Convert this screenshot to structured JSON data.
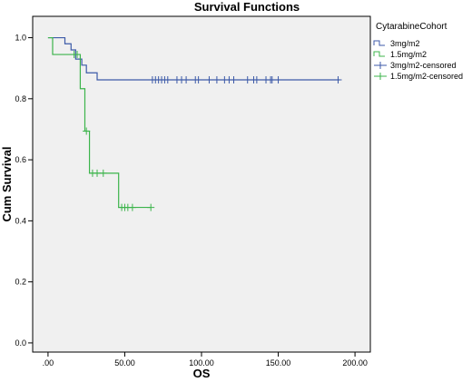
{
  "chart_data": {
    "type": "line",
    "title": "Survival Functions",
    "xlabel": "OS",
    "ylabel": "Cum Survival",
    "xlim": [
      -10,
      210
    ],
    "ylim": [
      -0.03,
      1.07
    ],
    "x_ticks": [
      0,
      50,
      100,
      150,
      200
    ],
    "x_tick_labels": [
      ".00",
      "50.00",
      "100.00",
      "150.00",
      "200.00"
    ],
    "y_ticks": [
      0.0,
      0.2,
      0.4,
      0.6,
      0.8,
      1.0
    ],
    "y_tick_labels": [
      "0.0",
      "0.2",
      "0.4",
      "0.6",
      "0.8",
      "1.0"
    ],
    "grid": false,
    "background": "#f0f0f0",
    "legend": {
      "title": "CytarabineCohort",
      "placement": "right",
      "entries": [
        "3mg/m2",
        "1.5mg/m2",
        "3mg/m2-censored",
        "1.5mg/m2-censored"
      ]
    },
    "series": [
      {
        "name": "3mg/m2",
        "color": "#3c5aa8",
        "step_x": [
          0,
          11,
          15,
          18,
          22,
          25,
          32,
          190
        ],
        "step_y": [
          1.0,
          0.98,
          0.96,
          0.93,
          0.91,
          0.885,
          0.862,
          0.862
        ],
        "censored_x": [
          68,
          70,
          72,
          74,
          76,
          78,
          84,
          87,
          90,
          96,
          98,
          105,
          110,
          115,
          118,
          121,
          130,
          134,
          136,
          142,
          145,
          146,
          150,
          189
        ],
        "censored_y": 0.862
      },
      {
        "name": "1.5mg/m2",
        "color": "#3cb44b",
        "step_x": [
          0,
          3,
          21,
          24,
          27,
          46,
          67
        ],
        "step_y": [
          1.0,
          0.945,
          0.833,
          0.694,
          0.556,
          0.444,
          0.444
        ],
        "censored_x": [
          17,
          19,
          25,
          29,
          32,
          36,
          48,
          50,
          52,
          55,
          67
        ],
        "censored_y": [
          0.945,
          0.945,
          0.694,
          0.556,
          0.556,
          0.556,
          0.444,
          0.444,
          0.444,
          0.444,
          0.444
        ]
      }
    ]
  }
}
